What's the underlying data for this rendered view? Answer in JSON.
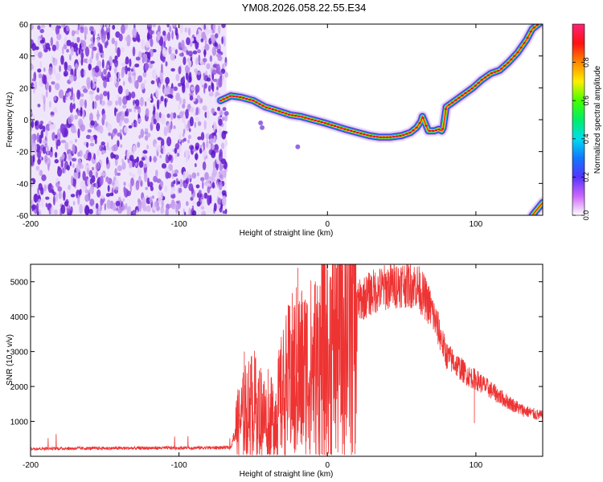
{
  "title": "YM08.2026.058.22.55.E34",
  "chart_data": [
    {
      "type": "heatmap",
      "xlabel": "Height of straight line (km)",
      "ylabel": "Frequency (Hz)",
      "xlim": [
        -200,
        145
      ],
      "ylim": [
        -60,
        60
      ],
      "xticks": [
        -200,
        -100,
        0,
        100
      ],
      "yticks": [
        -60,
        -40,
        -20,
        0,
        20,
        40,
        60
      ],
      "noise_region_x": [
        -200,
        -68
      ],
      "ridge": {
        "x": [
          -72,
          -65,
          -58,
          -50,
          -42,
          -35,
          -25,
          -18,
          -10,
          -2,
          5,
          12,
          20,
          28,
          35,
          42,
          50,
          56,
          60,
          63,
          64,
          68,
          72,
          75,
          77,
          78,
          80,
          86,
          92,
          98,
          104,
          110,
          116,
          122,
          128,
          134,
          138,
          145
        ],
        "y": [
          12,
          15,
          14,
          12,
          8,
          6,
          3,
          2,
          0,
          -2,
          -4,
          -6,
          -8,
          -10,
          -11,
          -11,
          -10,
          -8,
          -5,
          -1,
          2,
          -7,
          -7,
          -6,
          -7,
          -5,
          8,
          12,
          16,
          20,
          25,
          29,
          31,
          36,
          42,
          50,
          57,
          62
        ]
      },
      "ridge2": {
        "x": [
          138,
          145
        ],
        "y": [
          -60,
          -52
        ]
      },
      "colorbar": {
        "label": "Normalized spectral amplitude",
        "ticks": [
          0.0,
          0.2,
          0.4,
          0.6,
          0.8
        ],
        "tick_labels": [
          "0.0",
          "0.2",
          "0.4",
          "0.6",
          "0.8"
        ],
        "range": [
          0,
          1
        ]
      }
    },
    {
      "type": "line",
      "xlabel": "Height of straight line (km)",
      "ylabel": "SNR (10 * v/v)",
      "xlim": [
        -200,
        145
      ],
      "ylim": [
        0,
        5500
      ],
      "xticks": [
        -200,
        -100,
        0,
        100
      ],
      "yticks": [
        1000,
        2000,
        3000,
        4000,
        5000
      ],
      "color": "#ee3333",
      "envelope": {
        "x": [
          -200,
          -150,
          -100,
          -65,
          -62,
          -55,
          -50,
          -45,
          -40,
          -35,
          -30,
          -25,
          -20,
          -15,
          -10,
          -5,
          0,
          5,
          10,
          20,
          30,
          40,
          50,
          60,
          65,
          70,
          75,
          80,
          90,
          95,
          100,
          110,
          120,
          130,
          140,
          145
        ],
        "y": [
          220,
          230,
          240,
          250,
          800,
          1300,
          1500,
          1300,
          1000,
          1200,
          1800,
          2200,
          2400,
          2400,
          2500,
          2700,
          3000,
          3400,
          3900,
          4400,
          4700,
          4850,
          4950,
          4900,
          4600,
          4200,
          3600,
          2900,
          2500,
          2300,
          2200,
          1900,
          1600,
          1350,
          1200,
          1150
        ]
      },
      "spikes": [
        {
          "x": -20,
          "y": 5400
        },
        {
          "x": -17,
          "y": 3900
        },
        {
          "x": -25,
          "y": 3600
        },
        {
          "x": -14,
          "y": 4400
        },
        {
          "x": -56,
          "y": 3000
        },
        {
          "x": -10,
          "y": 3200
        },
        {
          "x": -5,
          "y": 3600
        },
        {
          "x": -40,
          "y": 2500
        },
        {
          "x": -30,
          "y": 2900
        }
      ],
      "dips": [
        {
          "x": -45,
          "y": 200
        },
        {
          "x": -35,
          "y": 300
        },
        {
          "x": -22,
          "y": 100
        },
        {
          "x": -18,
          "y": 400
        },
        {
          "x": -12,
          "y": 500
        },
        {
          "x": 99,
          "y": 950
        }
      ]
    }
  ]
}
